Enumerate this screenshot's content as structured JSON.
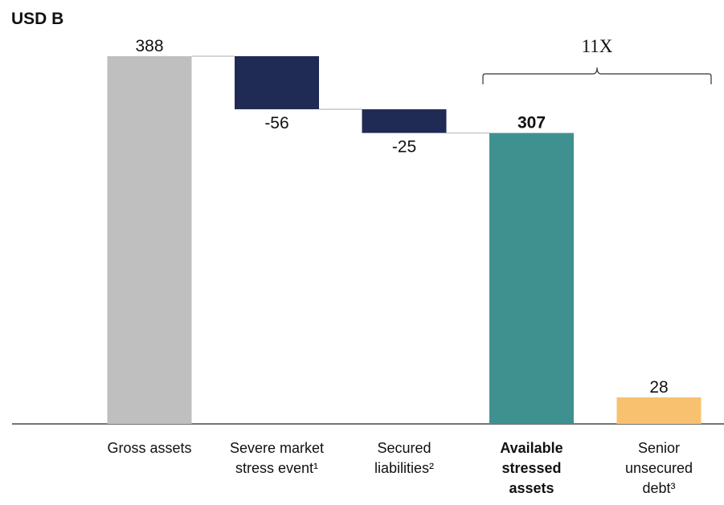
{
  "chart_data": {
    "type": "waterfall",
    "title": "USD B",
    "categories": [
      "Gross assets",
      "Severe market stress event¹",
      "Secured liabilities²",
      "Available stressed assets",
      "Senior unsecured debt³"
    ],
    "values": [
      388,
      -56,
      -25,
      307,
      28
    ],
    "measure": [
      "absolute",
      "relative",
      "relative",
      "total",
      "absolute"
    ],
    "colors": [
      "#bfbfbf",
      "#1f2a55",
      "#1f2a55",
      "#3f9190",
      "#f7c16f"
    ],
    "highlight_index": 3,
    "annotation": "11X"
  }
}
